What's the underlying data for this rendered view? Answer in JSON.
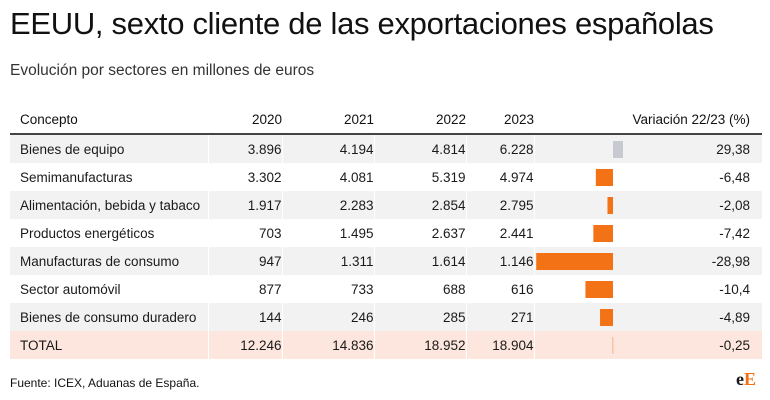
{
  "title": "EEUU, sexto cliente de las exportaciones españolas",
  "subtitle": "Evolución por sectores en millones de euros",
  "source": "Fuente: ICEX, Aduanas de España.",
  "logo": {
    "part1": "e",
    "part2": "E"
  },
  "colors": {
    "positive": "#c7cbd1",
    "negative": "#f47216",
    "total_row": "#fde6de",
    "stripe": "#f2f2f2"
  },
  "chart_data": {
    "type": "table",
    "columns": [
      "Concepto",
      "2020",
      "2021",
      "2022",
      "2023",
      "Variación 22/23 (%)"
    ],
    "rows": [
      {
        "concepto": "Bienes de equipo",
        "y2020": "3.896",
        "y2021": "4.194",
        "y2022": "4.814",
        "y2023": "6.228",
        "variacion_label": "29,38",
        "variacion": 29.38
      },
      {
        "concepto": "Semimanufacturas",
        "y2020": "3.302",
        "y2021": "4.081",
        "y2022": "5.319",
        "y2023": "4.974",
        "variacion_label": "-6,48",
        "variacion": -6.48
      },
      {
        "concepto": "Alimentación, bebida y tabaco",
        "y2020": "1.917",
        "y2021": "2.283",
        "y2022": "2.854",
        "y2023": "2.795",
        "variacion_label": "-2,08",
        "variacion": -2.08
      },
      {
        "concepto": "Productos energéticos",
        "y2020": "703",
        "y2021": "1.495",
        "y2022": "2.637",
        "y2023": "2.441",
        "variacion_label": "-7,42",
        "variacion": -7.42
      },
      {
        "concepto": "Manufacturas de consumo",
        "y2020": "947",
        "y2021": "1.311",
        "y2022": "1.614",
        "y2023": "1.146",
        "variacion_label": "-28,98",
        "variacion": -28.98
      },
      {
        "concepto": "Sector automóvil",
        "y2020": "877",
        "y2021": "733",
        "y2022": "688",
        "y2023": "616",
        "variacion_label": "-10,4",
        "variacion": -10.4
      },
      {
        "concepto": "Bienes de consumo duradero",
        "y2020": "144",
        "y2021": "246",
        "y2022": "285",
        "y2023": "271",
        "variacion_label": "-4,89",
        "variacion": -4.89
      }
    ],
    "total": {
      "concepto": "TOTAL",
      "y2020": "12.246",
      "y2021": "14.836",
      "y2022": "18.952",
      "y2023": "18.904",
      "variacion_label": "-0,25",
      "variacion": -0.25
    }
  }
}
